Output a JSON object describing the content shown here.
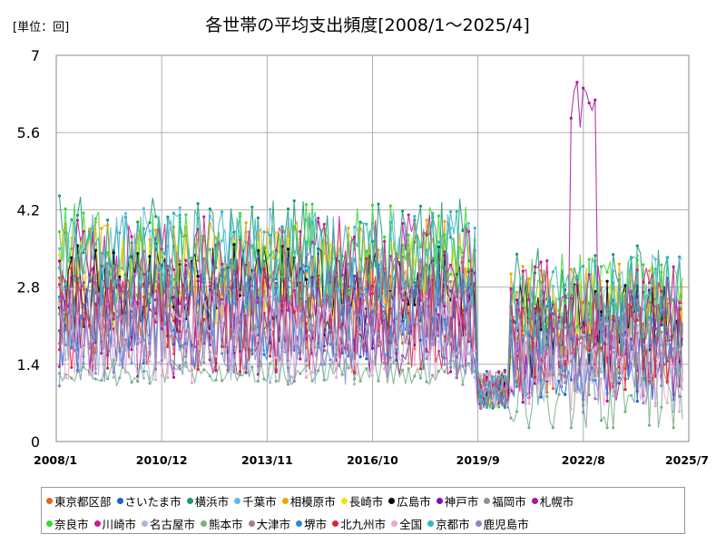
{
  "chart_data": {
    "type": "line",
    "title": "各世帯の平均支出頻度[2008/1～2025/4]",
    "unit_label": "[単位：回]",
    "y_ticks": [
      "0",
      "1.4",
      "2.8",
      "4.2",
      "5.6",
      "7"
    ],
    "ylim": [
      0,
      7
    ],
    "x_ticks": [
      "2008/1",
      "2010/12",
      "2013/11",
      "2016/10",
      "2019/9",
      "2022/8",
      "2025/7"
    ],
    "grid": true,
    "legend_position": "bottom",
    "series": [
      {
        "name": "東京都区部",
        "color": "#e8601c"
      },
      {
        "name": "さいたま市",
        "color": "#1e5fd9"
      },
      {
        "name": "横浜市",
        "color": "#1a9a6c"
      },
      {
        "name": "千葉市",
        "color": "#5fb8e8"
      },
      {
        "name": "相模原市",
        "color": "#f0a400"
      },
      {
        "name": "長崎市",
        "color": "#f2e200"
      },
      {
        "name": "広島市",
        "color": "#000000"
      },
      {
        "name": "神戸市",
        "color": "#8a0aa8"
      },
      {
        "name": "福岡市",
        "color": "#909090"
      },
      {
        "name": "札幌市",
        "color": "#a8189a"
      },
      {
        "name": "奈良市",
        "color": "#38d838"
      },
      {
        "name": "川崎市",
        "color": "#d0189a"
      },
      {
        "name": "名古屋市",
        "color": "#a8b8d8"
      },
      {
        "name": "熊本市",
        "color": "#78b088"
      },
      {
        "name": "大津市",
        "color": "#a87890"
      },
      {
        "name": "堺市",
        "color": "#2888d8"
      },
      {
        "name": "北九州市",
        "color": "#d82838"
      },
      {
        "name": "全国",
        "color": "#e8a8d8"
      },
      {
        "name": "京都市",
        "color": "#30b8c0"
      },
      {
        "name": "鹿児島市",
        "color": "#8888c8"
      }
    ]
  }
}
